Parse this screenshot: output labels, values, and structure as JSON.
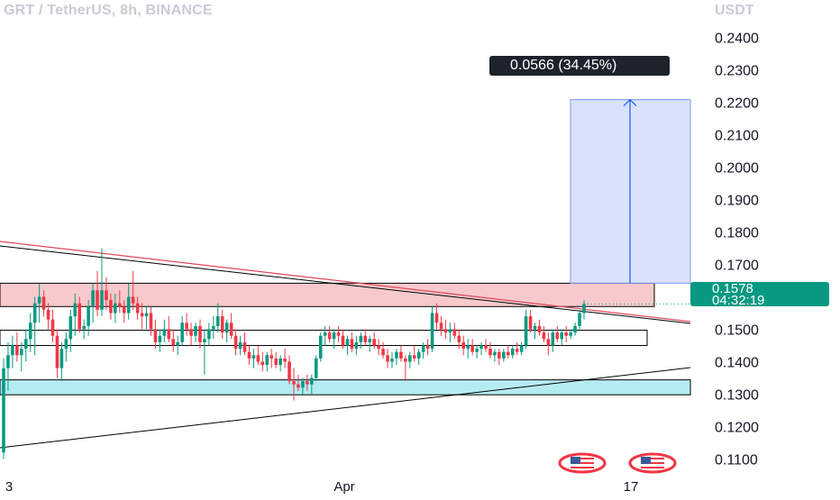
{
  "header": {
    "symbol_line": "GRT / TetherUS, 8h, BINANCE",
    "currency": "USDT"
  },
  "colors": {
    "up": "#089981",
    "down": "#f23645",
    "resistance_zone": "#f8c9cc",
    "support_zone": "#b5ecf2",
    "projection_zone": "#c9d5fb",
    "trendline_red": "#e04858",
    "trendline_black": "#000000",
    "axis_text": "#131722"
  },
  "measure": {
    "label": "0.0566 (34.45%)"
  },
  "last_price": {
    "price_label": "0.1578",
    "countdown": "04:32:19"
  },
  "icons": [
    "us-flag-icon",
    "us-flag-icon"
  ],
  "chart_data": {
    "type": "candlestick",
    "y_ticks": [
      "0.1100",
      "0.1200",
      "0.1300",
      "0.1400",
      "0.1500",
      "0.1600",
      "0.1700",
      "0.1800",
      "0.1900",
      "0.2000",
      "0.2100",
      "0.2200",
      "0.2300",
      "0.2400"
    ],
    "x_ticks": [
      "3",
      "Apr",
      "17"
    ],
    "ylim": [
      0.1043,
      0.2443
    ],
    "last_close": 0.1578,
    "zones": [
      {
        "kind": "resistance",
        "low": 0.157,
        "high": 0.1642
      },
      {
        "kind": "support",
        "low": 0.1298,
        "high": 0.1344
      },
      {
        "kind": "range",
        "low": 0.145,
        "high": 0.1497
      }
    ],
    "projection": {
      "from": 0.1642,
      "to": 0.2208
    },
    "ohlc": [
      [
        0.112,
        0.141,
        0.11,
        0.138
      ],
      [
        0.138,
        0.146,
        0.131,
        0.142
      ],
      [
        0.142,
        0.148,
        0.138,
        0.145
      ],
      [
        0.145,
        0.149,
        0.14,
        0.142
      ],
      [
        0.142,
        0.146,
        0.137,
        0.144
      ],
      [
        0.144,
        0.15,
        0.14,
        0.147
      ],
      [
        0.147,
        0.155,
        0.143,
        0.152
      ],
      [
        0.152,
        0.16,
        0.142,
        0.158
      ],
      [
        0.158,
        0.164,
        0.152,
        0.16
      ],
      [
        0.16,
        0.162,
        0.154,
        0.156
      ],
      [
        0.156,
        0.158,
        0.15,
        0.153
      ],
      [
        0.153,
        0.156,
        0.146,
        0.148
      ],
      [
        0.148,
        0.15,
        0.135,
        0.138
      ],
      [
        0.138,
        0.146,
        0.134,
        0.144
      ],
      [
        0.144,
        0.149,
        0.14,
        0.147
      ],
      [
        0.147,
        0.156,
        0.143,
        0.154
      ],
      [
        0.154,
        0.161,
        0.148,
        0.158
      ],
      [
        0.158,
        0.16,
        0.149,
        0.15
      ],
      [
        0.15,
        0.153,
        0.147,
        0.151
      ],
      [
        0.151,
        0.159,
        0.148,
        0.157
      ],
      [
        0.157,
        0.164,
        0.152,
        0.162
      ],
      [
        0.162,
        0.168,
        0.154,
        0.156
      ],
      [
        0.156,
        0.175,
        0.154,
        0.162
      ],
      [
        0.162,
        0.166,
        0.156,
        0.159
      ],
      [
        0.159,
        0.161,
        0.153,
        0.155
      ],
      [
        0.155,
        0.161,
        0.152,
        0.158
      ],
      [
        0.158,
        0.162,
        0.155,
        0.157
      ],
      [
        0.157,
        0.159,
        0.152,
        0.155
      ],
      [
        0.155,
        0.164,
        0.153,
        0.16
      ],
      [
        0.16,
        0.168,
        0.156,
        0.158
      ],
      [
        0.158,
        0.16,
        0.153,
        0.155
      ],
      [
        0.155,
        0.158,
        0.15,
        0.154
      ],
      [
        0.154,
        0.157,
        0.15,
        0.155
      ],
      [
        0.155,
        0.157,
        0.148,
        0.15
      ],
      [
        0.15,
        0.153,
        0.144,
        0.146
      ],
      [
        0.146,
        0.15,
        0.143,
        0.148
      ],
      [
        0.148,
        0.153,
        0.146,
        0.15
      ],
      [
        0.15,
        0.154,
        0.146,
        0.147
      ],
      [
        0.147,
        0.15,
        0.143,
        0.145
      ],
      [
        0.145,
        0.148,
        0.142,
        0.146
      ],
      [
        0.146,
        0.154,
        0.145,
        0.152
      ],
      [
        0.152,
        0.155,
        0.148,
        0.15
      ],
      [
        0.15,
        0.152,
        0.145,
        0.148
      ],
      [
        0.148,
        0.152,
        0.146,
        0.151
      ],
      [
        0.151,
        0.153,
        0.144,
        0.146
      ],
      [
        0.146,
        0.15,
        0.136,
        0.147
      ],
      [
        0.147,
        0.152,
        0.145,
        0.15
      ],
      [
        0.15,
        0.154,
        0.147,
        0.151
      ],
      [
        0.151,
        0.158,
        0.149,
        0.154
      ],
      [
        0.154,
        0.156,
        0.147,
        0.149
      ],
      [
        0.149,
        0.153,
        0.146,
        0.152
      ],
      [
        0.152,
        0.155,
        0.147,
        0.148
      ],
      [
        0.148,
        0.15,
        0.142,
        0.144
      ],
      [
        0.144,
        0.148,
        0.142,
        0.146
      ],
      [
        0.146,
        0.149,
        0.142,
        0.143
      ],
      [
        0.143,
        0.145,
        0.139,
        0.141
      ],
      [
        0.141,
        0.144,
        0.138,
        0.142
      ],
      [
        0.142,
        0.145,
        0.139,
        0.14
      ],
      [
        0.14,
        0.143,
        0.137,
        0.139
      ],
      [
        0.139,
        0.143,
        0.137,
        0.142
      ],
      [
        0.142,
        0.144,
        0.138,
        0.141
      ],
      [
        0.141,
        0.143,
        0.138,
        0.139
      ],
      [
        0.139,
        0.142,
        0.137,
        0.141
      ],
      [
        0.141,
        0.144,
        0.138,
        0.14
      ],
      [
        0.14,
        0.142,
        0.133,
        0.134
      ],
      [
        0.134,
        0.138,
        0.128,
        0.133
      ],
      [
        0.133,
        0.136,
        0.131,
        0.132
      ],
      [
        0.132,
        0.135,
        0.13,
        0.134
      ],
      [
        0.134,
        0.136,
        0.131,
        0.133
      ],
      [
        0.133,
        0.136,
        0.13,
        0.135
      ],
      [
        0.135,
        0.142,
        0.134,
        0.141
      ],
      [
        0.141,
        0.149,
        0.14,
        0.148
      ],
      [
        0.148,
        0.151,
        0.145,
        0.149
      ],
      [
        0.149,
        0.151,
        0.146,
        0.147
      ],
      [
        0.147,
        0.15,
        0.144,
        0.149
      ],
      [
        0.149,
        0.151,
        0.146,
        0.148
      ],
      [
        0.148,
        0.15,
        0.144,
        0.145
      ],
      [
        0.145,
        0.148,
        0.142,
        0.147
      ],
      [
        0.147,
        0.149,
        0.143,
        0.144
      ],
      [
        0.144,
        0.148,
        0.142,
        0.146
      ],
      [
        0.146,
        0.149,
        0.144,
        0.148
      ],
      [
        0.148,
        0.15,
        0.145,
        0.146
      ],
      [
        0.146,
        0.148,
        0.143,
        0.147
      ],
      [
        0.147,
        0.149,
        0.144,
        0.145
      ],
      [
        0.145,
        0.147,
        0.142,
        0.144
      ],
      [
        0.144,
        0.146,
        0.141,
        0.142
      ],
      [
        0.142,
        0.144,
        0.138,
        0.14
      ],
      [
        0.14,
        0.143,
        0.138,
        0.141
      ],
      [
        0.141,
        0.144,
        0.139,
        0.143
      ],
      [
        0.143,
        0.145,
        0.14,
        0.141
      ],
      [
        0.141,
        0.142,
        0.134,
        0.14
      ],
      [
        0.14,
        0.143,
        0.138,
        0.142
      ],
      [
        0.142,
        0.145,
        0.14,
        0.141
      ],
      [
        0.141,
        0.144,
        0.139,
        0.143
      ],
      [
        0.143,
        0.146,
        0.141,
        0.145
      ],
      [
        0.145,
        0.147,
        0.142,
        0.144
      ],
      [
        0.144,
        0.157,
        0.143,
        0.155
      ],
      [
        0.155,
        0.158,
        0.15,
        0.152
      ],
      [
        0.152,
        0.154,
        0.148,
        0.15
      ],
      [
        0.15,
        0.153,
        0.147,
        0.149
      ],
      [
        0.149,
        0.152,
        0.146,
        0.15
      ],
      [
        0.15,
        0.152,
        0.147,
        0.148
      ],
      [
        0.148,
        0.15,
        0.144,
        0.146
      ],
      [
        0.146,
        0.148,
        0.142,
        0.144
      ],
      [
        0.144,
        0.147,
        0.141,
        0.145
      ],
      [
        0.145,
        0.147,
        0.142,
        0.143
      ],
      [
        0.143,
        0.145,
        0.141,
        0.144
      ],
      [
        0.144,
        0.146,
        0.142,
        0.145
      ],
      [
        0.145,
        0.147,
        0.143,
        0.144
      ],
      [
        0.144,
        0.146,
        0.141,
        0.142
      ],
      [
        0.142,
        0.144,
        0.14,
        0.143
      ],
      [
        0.143,
        0.144,
        0.139,
        0.141
      ],
      [
        0.141,
        0.144,
        0.14,
        0.143
      ],
      [
        0.143,
        0.145,
        0.141,
        0.142
      ],
      [
        0.142,
        0.145,
        0.141,
        0.144
      ],
      [
        0.144,
        0.146,
        0.142,
        0.143
      ],
      [
        0.143,
        0.146,
        0.142,
        0.145
      ],
      [
        0.145,
        0.156,
        0.144,
        0.154
      ],
      [
        0.154,
        0.156,
        0.149,
        0.15
      ],
      [
        0.15,
        0.152,
        0.147,
        0.151
      ],
      [
        0.151,
        0.153,
        0.148,
        0.149
      ],
      [
        0.149,
        0.151,
        0.146,
        0.147
      ],
      [
        0.147,
        0.149,
        0.142,
        0.145
      ],
      [
        0.145,
        0.15,
        0.143,
        0.149
      ],
      [
        0.149,
        0.151,
        0.146,
        0.147
      ],
      [
        0.147,
        0.15,
        0.145,
        0.149
      ],
      [
        0.149,
        0.151,
        0.146,
        0.148
      ],
      [
        0.148,
        0.15,
        0.147,
        0.149
      ],
      [
        0.149,
        0.152,
        0.148,
        0.151
      ],
      [
        0.151,
        0.156,
        0.15,
        0.155
      ],
      [
        0.155,
        0.159,
        0.153,
        0.1578
      ]
    ]
  }
}
